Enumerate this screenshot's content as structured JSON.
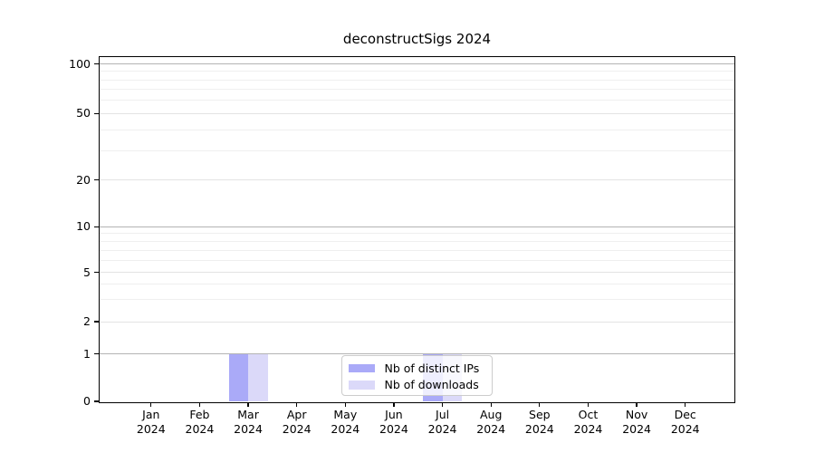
{
  "chart_data": {
    "type": "bar",
    "title": "deconstructSigs 2024",
    "xlabel": "",
    "ylabel": "",
    "yscale": "log-like",
    "ylim": [
      0,
      110
    ],
    "grid": true,
    "legend_position": "lower center",
    "categories": [
      "Jan 2024",
      "Feb 2024",
      "Mar 2024",
      "Apr 2024",
      "May 2024",
      "Jun 2024",
      "Jul 2024",
      "Aug 2024",
      "Sep 2024",
      "Oct 2024",
      "Nov 2024",
      "Dec 2024"
    ],
    "y_ticks": [
      0,
      1,
      2,
      5,
      10,
      20,
      50,
      100
    ],
    "y_major_gridlines": [
      1,
      10,
      100
    ],
    "y_minor_gridlines": [
      3,
      4,
      6,
      7,
      8,
      9,
      30,
      40,
      60,
      70,
      80,
      90
    ],
    "series": [
      {
        "name": "Nb of distinct IPs",
        "color": "#aaaaf8",
        "values": [
          0,
          0,
          1,
          0,
          0,
          0,
          1,
          0,
          0,
          0,
          0,
          0
        ]
      },
      {
        "name": "Nb of downloads",
        "color": "#dbd9f9",
        "values": [
          0,
          0,
          1,
          0,
          0,
          0,
          1,
          0,
          0,
          0,
          0,
          0
        ]
      }
    ],
    "grid_colors": {
      "major": "#b4b4b4",
      "labeled_light": "#e3e3e3",
      "minor": "#efefef"
    }
  }
}
